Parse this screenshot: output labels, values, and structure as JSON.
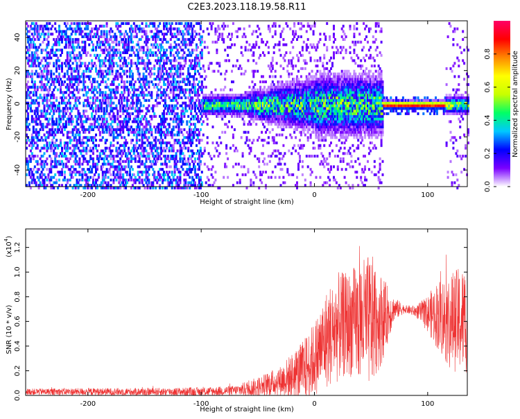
{
  "title": "C2E3.2023.118.19.58.R11",
  "chart_data": [
    {
      "type": "heatmap",
      "xlabel": "Height of straight line (km)",
      "ylabel": "Frequency (Hz)",
      "xlim": [
        -255,
        135
      ],
      "ylim": [
        -50,
        50
      ],
      "xticks": [
        -200,
        -100,
        0,
        100
      ],
      "yticks": [
        -40,
        -20,
        0,
        20,
        40
      ],
      "colorbar": {
        "label": "Normalized spectral amplitude",
        "ticks": [
          "0.0",
          "0.2",
          "0.4",
          "0.6",
          "0.8"
        ],
        "range": [
          0,
          1
        ],
        "colors": [
          "#ffffff",
          "#7a00ff",
          "#0000ff",
          "#00c8ff",
          "#00ff66",
          "#c8ff00",
          "#ffff00",
          "#ff8800",
          "#ff0000",
          "#ff0066"
        ]
      },
      "regions": [
        {
          "x_from": -255,
          "x_to": -100,
          "description_value": "broadband noise",
          "amp": 0.3
        },
        {
          "x_from": -100,
          "x_to": 0,
          "center_hz": 0,
          "width_hz": 6,
          "amp": 0.4
        },
        {
          "x_from": 0,
          "x_to": 60,
          "center_hz": 0,
          "width_hz": 12,
          "amp": 0.45
        },
        {
          "x_from": 60,
          "x_to": 115,
          "center_hz": 0,
          "width_hz": 2,
          "amp": 0.9
        },
        {
          "x_from": 115,
          "x_to": 135,
          "center_hz": 0,
          "width_hz": 5,
          "amp": 0.5
        }
      ]
    },
    {
      "type": "line",
      "xlabel": "Height of straight line (km)",
      "ylabel": "SNR (10 * v/v)",
      "yscale_label": "(x10",
      "yscale_exp": "4",
      "xlim": [
        -255,
        135
      ],
      "ylim": [
        0,
        1.35
      ],
      "xticks": [
        -200,
        -100,
        0,
        100
      ],
      "yticks": [
        "0.0",
        "0.2",
        "0.4",
        "0.6",
        "0.8",
        "1.0",
        "1.2"
      ],
      "color": "#ee3333",
      "series": [
        {
          "x": [
            -255,
            -200,
            -150,
            -100,
            -70,
            -50,
            -30,
            -10,
            0,
            10,
            20,
            30,
            40,
            50,
            60,
            70,
            80,
            90,
            100,
            110,
            120,
            135
          ],
          "base": [
            0.03,
            0.03,
            0.03,
            0.03,
            0.04,
            0.07,
            0.12,
            0.2,
            0.3,
            0.45,
            0.55,
            0.58,
            0.6,
            0.6,
            0.62,
            0.7,
            0.7,
            0.68,
            0.66,
            0.65,
            0.6,
            0.62
          ],
          "spread": [
            0.025,
            0.03,
            0.03,
            0.035,
            0.04,
            0.08,
            0.12,
            0.25,
            0.3,
            0.4,
            0.45,
            0.42,
            0.5,
            0.55,
            0.35,
            0.1,
            0.03,
            0.05,
            0.15,
            0.3,
            0.4,
            0.45
          ]
        }
      ]
    }
  ]
}
